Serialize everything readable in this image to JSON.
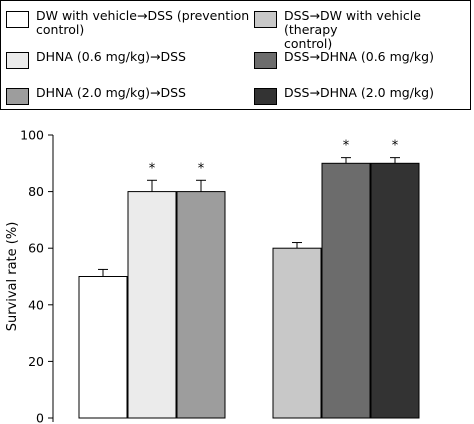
{
  "legend": [
    {
      "label": "DW with vehicle→DSS (prevention\ncontrol)",
      "color": "#ffffff"
    },
    {
      "label": "DSS→DW with vehicle (therapy\ncontrol)",
      "color": "#c8c8c8"
    },
    {
      "label": "DHNA (0.6 mg/kg)→DSS",
      "color": "#ebebeb"
    },
    {
      "label": "DSS→DHNA (0.6 mg/kg)",
      "color": "#6c6c6c"
    },
    {
      "label": "DHNA (2.0 mg/kg)→DSS",
      "color": "#9d9d9d"
    },
    {
      "label": "DSS→DHNA (2.0 mg/kg)",
      "color": "#333333"
    }
  ],
  "chart_data": {
    "type": "bar",
    "ylabel": "Survival rate (%)",
    "ylim": [
      0,
      100
    ],
    "yticks": [
      0,
      20,
      40,
      60,
      80,
      100
    ],
    "series": [
      {
        "value": 50,
        "error": 2.5,
        "significant": false,
        "color": "#ffffff"
      },
      {
        "value": 80,
        "error": 4,
        "significant": true,
        "color": "#ebebeb"
      },
      {
        "value": 80,
        "error": 4,
        "significant": true,
        "color": "#9d9d9d"
      },
      {
        "value": 60,
        "error": 2,
        "significant": false,
        "color": "#c8c8c8"
      },
      {
        "value": 90,
        "error": 2,
        "significant": true,
        "color": "#6c6c6c"
      },
      {
        "value": 90,
        "error": 2,
        "significant": true,
        "color": "#333333"
      }
    ],
    "significance_marker": "*"
  }
}
